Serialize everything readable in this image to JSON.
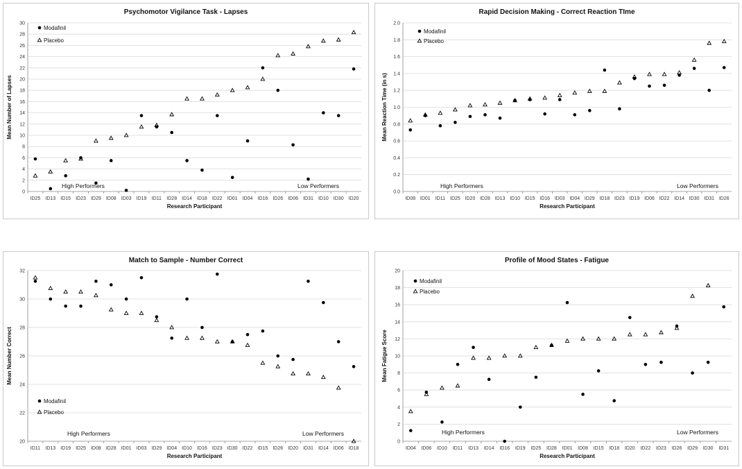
{
  "colors": {
    "modafinil": "#000000",
    "placebo": "#000000",
    "grid": "#d9d9d9"
  },
  "chart_data": [
    {
      "type": "scatter",
      "title": "Psychomotor Vigilance Task - Lapses",
      "xlabel": "Research Participant",
      "ylabel": "Mean Number of Lapses",
      "ylim": [
        0,
        30
      ],
      "ystep": 2,
      "ydecimals": 0,
      "grid": true,
      "legend_position": "top-left",
      "categories": [
        "ID25",
        "ID13",
        "ID15",
        "ID23",
        "ID29",
        "ID08",
        "ID03",
        "ID19",
        "ID11",
        "ID28",
        "ID14",
        "ID18",
        "ID22",
        "ID01",
        "ID04",
        "ID16",
        "ID26",
        "ID06",
        "ID31",
        "ID10",
        "ID30",
        "ID20"
      ],
      "series": [
        {
          "name": "Modafinil",
          "marker": "circle",
          "values": [
            5.8,
            0.5,
            2.8,
            6.0,
            1.5,
            5.5,
            0.2,
            13.5,
            11.5,
            10.5,
            5.5,
            3.8,
            13.5,
            2.5,
            9.0,
            22.0,
            18.0,
            8.3,
            2.2,
            14.0,
            13.5,
            21.8
          ]
        },
        {
          "name": "Placebo",
          "marker": "triangle",
          "values": [
            2.8,
            3.5,
            5.5,
            5.8,
            9.0,
            9.5,
            10.0,
            11.5,
            11.8,
            13.7,
            16.5,
            16.5,
            17.2,
            18.0,
            18.5,
            20.0,
            24.2,
            24.5,
            25.8,
            26.8,
            27.0,
            28.3
          ]
        }
      ],
      "annotations": [
        "High Performers",
        "Low Performers"
      ]
    },
    {
      "type": "scatter",
      "title": "Rapid Decision Making - Correct Reaction TIme",
      "xlabel": "Research Participant",
      "ylabel": "Mean Reaction Time (in s)",
      "ylim": [
        0,
        2.0
      ],
      "ystep": 0.2,
      "ydecimals": 1,
      "grid": true,
      "legend_position": "top-left",
      "categories": [
        "ID08",
        "ID01",
        "ID11",
        "ID25",
        "ID20",
        "ID28",
        "ID13",
        "ID10",
        "ID15",
        "ID16",
        "ID03",
        "ID04",
        "ID29",
        "ID18",
        "ID23",
        "ID19",
        "ID06",
        "ID22",
        "ID14",
        "ID30",
        "ID31",
        "ID26"
      ],
      "series": [
        {
          "name": "Modafinil",
          "marker": "circle",
          "values": [
            0.73,
            0.9,
            0.78,
            0.82,
            0.89,
            0.91,
            0.87,
            1.08,
            1.09,
            0.92,
            1.09,
            0.91,
            0.96,
            1.44,
            0.98,
            1.34,
            1.25,
            1.26,
            1.38,
            1.46,
            1.2,
            1.47
          ]
        },
        {
          "name": "Placebo",
          "marker": "triangle",
          "values": [
            0.84,
            0.91,
            0.93,
            0.97,
            1.02,
            1.03,
            1.05,
            1.08,
            1.1,
            1.11,
            1.14,
            1.17,
            1.19,
            1.19,
            1.29,
            1.36,
            1.39,
            1.39,
            1.41,
            1.56,
            1.76,
            1.78
          ]
        }
      ],
      "annotations": [
        "High Performers",
        "Low Performers"
      ]
    },
    {
      "type": "scatter",
      "title": "Match to Sample - Number Correct",
      "xlabel": "Research Participant",
      "ylabel": "Mean Number Correct",
      "ylim": [
        20,
        32
      ],
      "ystep": 2,
      "ydecimals": 0,
      "grid": true,
      "legend_position": "bottom-left",
      "categories": [
        "ID11",
        "ID13",
        "ID19",
        "ID25",
        "ID08",
        "ID28",
        "ID01",
        "ID03",
        "ID29",
        "ID04",
        "ID10",
        "ID16",
        "ID23",
        "ID30",
        "ID22",
        "ID15",
        "ID26",
        "ID20",
        "ID31",
        "ID14",
        "ID06",
        "ID18"
      ],
      "series": [
        {
          "name": "Modafinil",
          "marker": "circle",
          "values": [
            31.25,
            30.0,
            29.5,
            29.5,
            31.25,
            31.0,
            30.0,
            31.5,
            28.75,
            27.25,
            30.0,
            28.0,
            31.75,
            27.0,
            27.5,
            27.75,
            26.0,
            25.75,
            31.25,
            29.75,
            27.0,
            25.25
          ]
        },
        {
          "name": "Placebo",
          "marker": "triangle",
          "values": [
            31.5,
            30.75,
            30.5,
            30.5,
            30.25,
            29.25,
            29.0,
            29.0,
            28.5,
            28.0,
            27.25,
            27.25,
            27.0,
            27.0,
            26.75,
            25.5,
            25.25,
            24.75,
            24.75,
            24.5,
            23.75,
            20.0
          ]
        }
      ],
      "annotations": [
        "High Performers",
        "Low Performers"
      ]
    },
    {
      "type": "scatter",
      "title": "Profile of Mood States - Fatigue",
      "xlabel": "Research Participant",
      "ylabel": "Mean Fatigue Score",
      "ylim": [
        0,
        20
      ],
      "ystep": 2,
      "ydecimals": 0,
      "grid": true,
      "legend_position": "top-left",
      "categories": [
        "ID04",
        "ID06",
        "ID10",
        "ID11",
        "ID13",
        "ID14",
        "ID16",
        "ID19",
        "ID25",
        "ID28",
        "ID01",
        "ID08",
        "ID15",
        "ID18",
        "ID20",
        "ID22",
        "ID23",
        "ID26",
        "ID29",
        "ID30",
        "ID31"
      ],
      "series": [
        {
          "name": "Modafinil",
          "marker": "circle",
          "values": [
            1.25,
            5.75,
            2.25,
            9.0,
            11.0,
            7.25,
            0.0,
            4.0,
            7.5,
            11.25,
            16.25,
            5.5,
            8.25,
            4.75,
            14.5,
            9.0,
            9.25,
            13.5,
            8.0,
            9.25,
            15.75
          ]
        },
        {
          "name": "Placebo",
          "marker": "triangle",
          "values": [
            3.5,
            5.5,
            6.25,
            6.5,
            9.75,
            9.75,
            10.0,
            10.0,
            11.0,
            11.25,
            11.75,
            12.0,
            12.0,
            12.0,
            12.5,
            12.5,
            12.75,
            13.25,
            17.0,
            18.25,
            null
          ]
        }
      ],
      "annotations": [
        "High Performers",
        "Low Performers"
      ]
    }
  ]
}
